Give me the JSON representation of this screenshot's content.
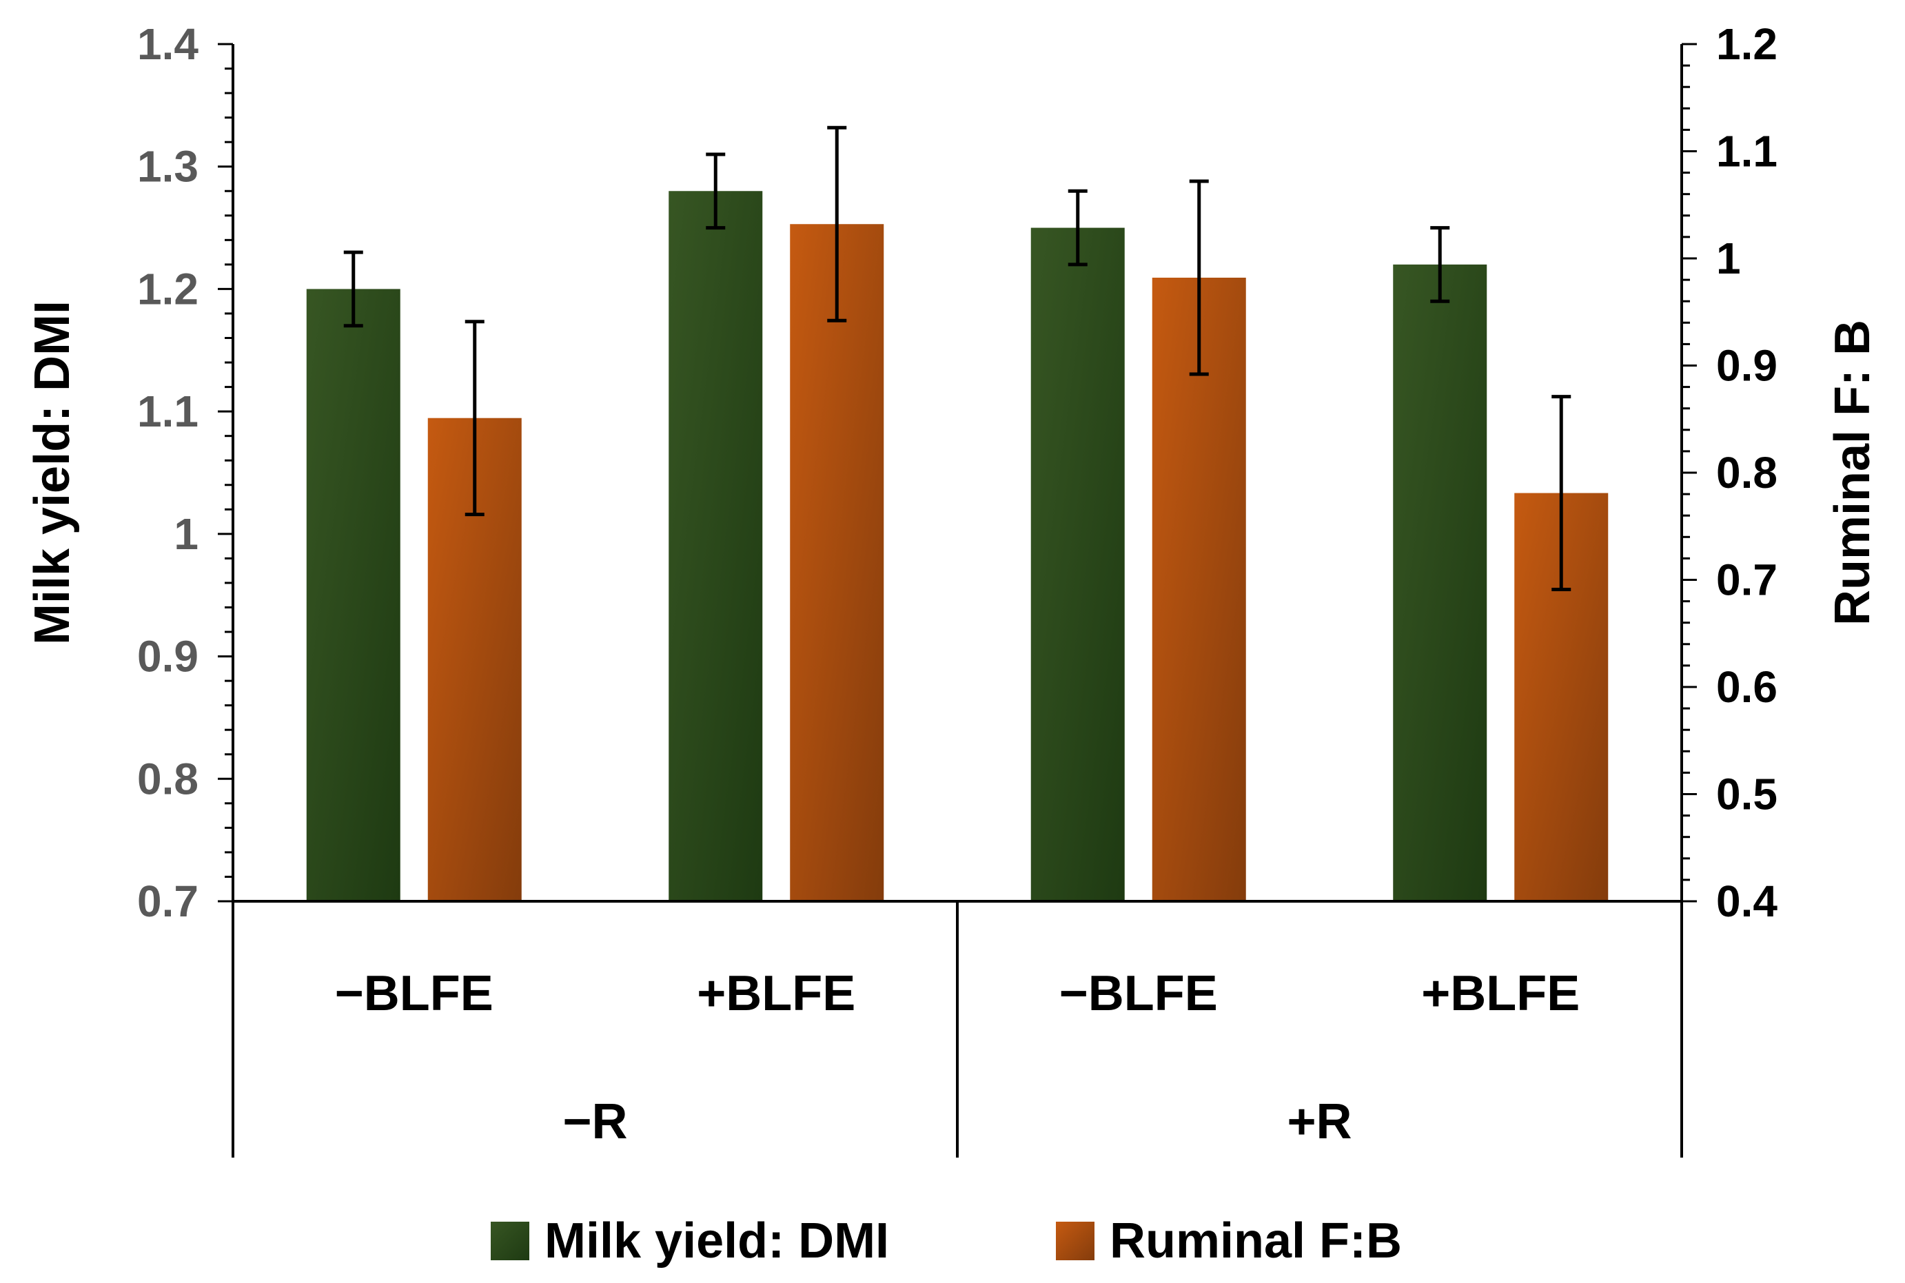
{
  "chart_data": {
    "type": "bar",
    "groups": [
      {
        "label": "−R",
        "categories": [
          "−BLFE",
          "+BLFE"
        ]
      },
      {
        "label": "+R",
        "categories": [
          "−BLFE",
          "+BLFE"
        ]
      }
    ],
    "categories": [
      "−BLFE",
      "+BLFE",
      "−BLFE",
      "+BLFE"
    ],
    "series": [
      {
        "name": "Milk yield: DMI",
        "axis": "left",
        "color": "#375623",
        "color_dark": "#1e3a12",
        "values": [
          1.2,
          1.28,
          1.25,
          1.22
        ],
        "errors": [
          0.03,
          0.03,
          0.03,
          0.03
        ]
      },
      {
        "name": "Ruminal F:B",
        "axis": "right",
        "color": "#c55a11",
        "color_dark": "#843c0c",
        "values": [
          0.851,
          1.032,
          0.982,
          0.781
        ],
        "errors": [
          0.09,
          0.09,
          0.09,
          0.09
        ]
      }
    ],
    "ylabel": "Milk yield: DMI",
    "ylim": [
      0.7,
      1.4
    ],
    "yticks": [
      "0.7",
      "0.8",
      "0.9",
      "1",
      "1.1",
      "1.2",
      "1.3",
      "1.4"
    ],
    "y2label": "Ruminal F: B",
    "y2lim": [
      0.4,
      1.2
    ],
    "y2ticks": [
      "0.4",
      "0.5",
      "0.6",
      "0.7",
      "0.8",
      "0.9",
      "1",
      "1.1",
      "1.2"
    ],
    "legend_position": "bottom",
    "colors": {
      "left_tick_text": "#595959",
      "right_tick_text": "#000000",
      "axis": "#000000"
    }
  }
}
